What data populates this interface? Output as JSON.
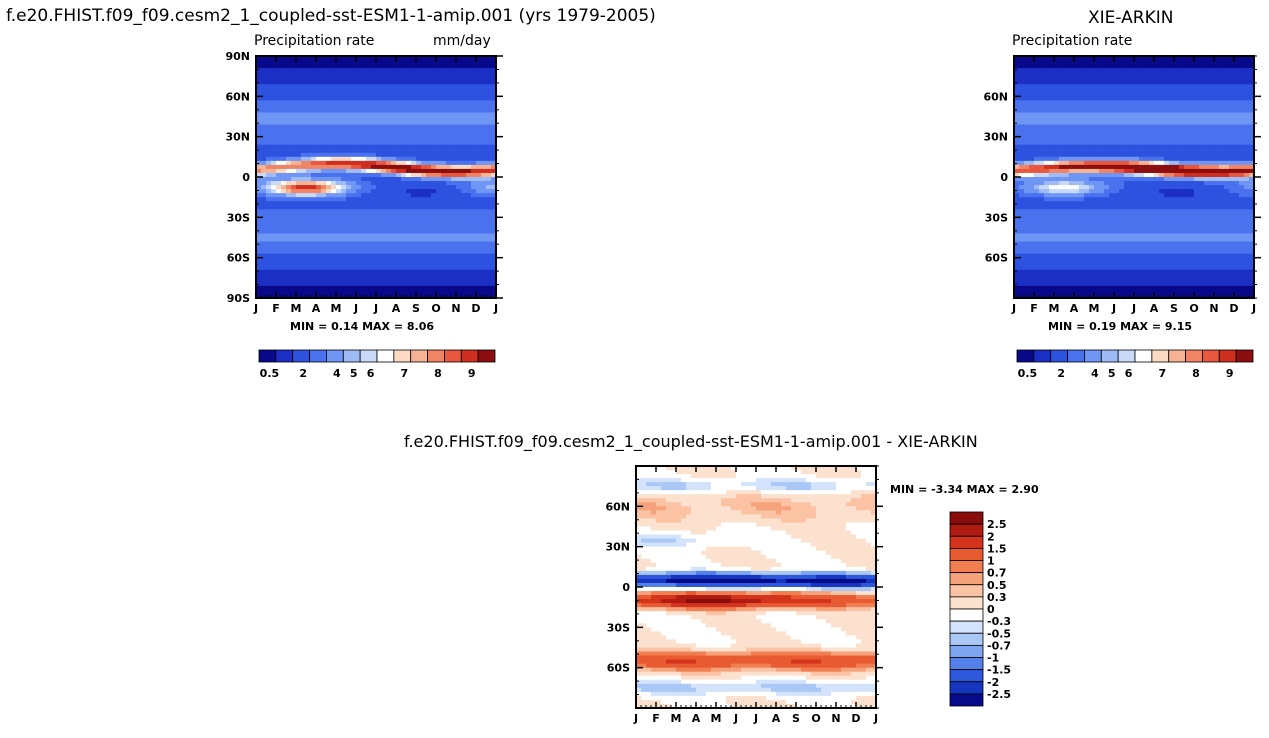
{
  "panels": {
    "model": {
      "title": "f.e20.FHIST.f09_f09.cesm2_1_coupled-sst-ESM1-1-amip.001 (yrs 1979-2005)",
      "left_label": "Precipitation rate",
      "right_label": "mm/day",
      "min_max": "MIN =   0.14 MAX =    8.06"
    },
    "obs": {
      "title": "XIE-ARKIN",
      "left_label": "Precipitation rate",
      "min_max": "MIN =   0.19 MAX =    9.15"
    },
    "diff": {
      "title": "f.e20.FHIST.f09_f09.cesm2_1_coupled-sst-ESM1-1-amip.001 - XIE-ARKIN",
      "min_max": "MIN =  -3.34 MAX =    2.90"
    }
  },
  "chart_data": [
    {
      "type": "heatmap",
      "title": "f.e20.FHIST.f09_f09.cesm2_1_coupled-sst-ESM1-1-amip.001 (yrs 1979-2005)",
      "variable": "Precipitation rate",
      "units": "mm/day",
      "x_ticks": [
        "J",
        "F",
        "M",
        "A",
        "M",
        "J",
        "J",
        "A",
        "S",
        "O",
        "N",
        "D",
        "J"
      ],
      "y_ticks": [
        "90N",
        "60N",
        "30N",
        "0",
        "30S",
        "60S",
        "90S"
      ],
      "ylim": [
        -90,
        90
      ],
      "min": 0.14,
      "max": 8.06,
      "colorbar_labels": [
        "0.5",
        "2",
        "4",
        "5",
        "6",
        "7",
        "8",
        "9"
      ],
      "colorbar_colors": [
        "#08088a",
        "#1c2fc4",
        "#2e52e0",
        "#4a72ef",
        "#6f96f5",
        "#9ebbf7",
        "#c8daf8",
        "#fdfdfd",
        "#fbd9c3",
        "#f5b393",
        "#ef8565",
        "#e8583e",
        "#cf2f1f",
        "#8c0e0e"
      ],
      "features": [
        {
          "name": "ITCZ north",
          "lat_center": 7,
          "month_center": 7.5,
          "value": 8.06
        },
        {
          "name": "SPCZ south",
          "lat_center": -8,
          "month_center": 2.5,
          "value": 7.5
        }
      ]
    },
    {
      "type": "heatmap",
      "title": "XIE-ARKIN",
      "variable": "Precipitation rate",
      "x_ticks": [
        "J",
        "F",
        "M",
        "A",
        "M",
        "J",
        "J",
        "A",
        "S",
        "O",
        "N",
        "D",
        "J"
      ],
      "y_ticks": [
        "60N",
        "30N",
        "0",
        "30S",
        "60S"
      ],
      "min": 0.19,
      "max": 9.15,
      "colorbar_labels": [
        "0.5",
        "2",
        "4",
        "5",
        "6",
        "7",
        "8",
        "9"
      ],
      "colorbar_colors": [
        "#08088a",
        "#1c2fc4",
        "#2e52e0",
        "#4a72ef",
        "#6f96f5",
        "#9ebbf7",
        "#c8daf8",
        "#fdfdfd",
        "#fbd9c3",
        "#f5b393",
        "#ef8565",
        "#e8583e",
        "#cf2f1f",
        "#8c0e0e"
      ],
      "features": [
        {
          "name": "ITCZ north",
          "lat_center": 6,
          "month_center": 7.5,
          "value": 9.15
        }
      ]
    },
    {
      "type": "heatmap",
      "title": "f.e20.FHIST.f09_f09.cesm2_1_coupled-sst-ESM1-1-amip.001 - XIE-ARKIN",
      "x_ticks": [
        "J",
        "F",
        "M",
        "A",
        "M",
        "J",
        "J",
        "A",
        "S",
        "O",
        "N",
        "D",
        "J"
      ],
      "y_ticks": [
        "60N",
        "30N",
        "0",
        "30S",
        "60S"
      ],
      "min": -3.34,
      "max": 2.9,
      "colorbar_labels": [
        "2.5",
        "2",
        "1.5",
        "1",
        "0.7",
        "0.5",
        "0.3",
        "0",
        "-0.3",
        "-0.5",
        "-0.7",
        "-1",
        "-1.5",
        "-2",
        "-2.5"
      ],
      "colorbar_colors": [
        "#8a0d0d",
        "#b01b12",
        "#d5341c",
        "#e85a32",
        "#f07e50",
        "#f6a27b",
        "#fbc2a3",
        "#fde1cf",
        "#ffffff",
        "#d3e3fb",
        "#aac8f6",
        "#7ea6f0",
        "#5481e9",
        "#2e58dc",
        "#1636c0",
        "#070b8a"
      ],
      "features": [
        {
          "name": "negative band north of equator",
          "lat_center": 5,
          "value": -3.34
        },
        {
          "name": "positive band south of equator",
          "lat_center": -10,
          "value": 2.9
        },
        {
          "name": "positive band 55S",
          "lat_center": -55,
          "value": 1.5
        }
      ]
    }
  ]
}
